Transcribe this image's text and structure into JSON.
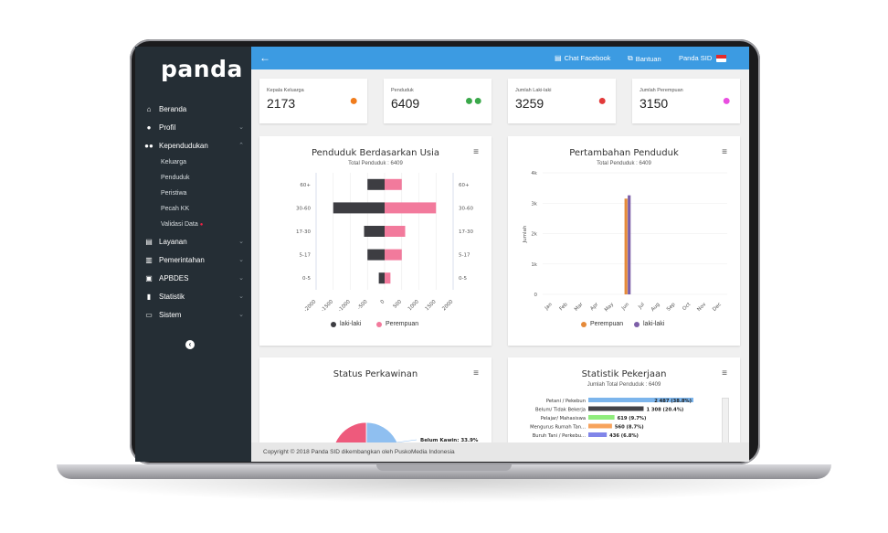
{
  "app": {
    "logo": "panda"
  },
  "sidebar": {
    "items": [
      {
        "label": "Beranda",
        "icon": "home-icon"
      },
      {
        "label": "Profil",
        "icon": "user-icon"
      },
      {
        "label": "Kependudukan",
        "icon": "users-icon"
      },
      {
        "label": "Layanan",
        "icon": "file-icon"
      },
      {
        "label": "Pemerintahan",
        "icon": "building-icon"
      },
      {
        "label": "APBDES",
        "icon": "money-icon"
      },
      {
        "label": "Statistik",
        "icon": "bar-chart-icon"
      },
      {
        "label": "Sistem",
        "icon": "monitor-icon"
      }
    ],
    "sub_items": [
      "Keluarga",
      "Penduduk",
      "Peristiwa",
      "Pecah KK",
      "Validasi Data"
    ]
  },
  "topbar": {
    "chat": "Chat Facebook",
    "help": "Bantuan",
    "site": "Panda SID"
  },
  "stats": [
    {
      "label": "Kepala Keluarga",
      "value": "2173",
      "color": "#f07c1c",
      "icon": "user-icon"
    },
    {
      "label": "Penduduk",
      "value": "6409",
      "color": "#3aa84a",
      "icon": "users-icon"
    },
    {
      "label": "Jumlah Laki-laki",
      "value": "3259",
      "color": "#e23a3a",
      "icon": "user-icon"
    },
    {
      "label": "Jumlah Perempuan",
      "value": "3150",
      "color": "#e94ee0",
      "icon": "user-icon"
    }
  ],
  "chart_data": [
    {
      "type": "bar",
      "title": "Penduduk Berdasarkan Usia",
      "subtitle": "Total Penduduk : 6409",
      "orientation": "horizontal",
      "categories": [
        "60+",
        "30-60",
        "17-30",
        "5-17",
        "0-5"
      ],
      "series": [
        {
          "name": "laki-laki",
          "color": "#3d3d42",
          "values": [
            -500,
            -1500,
            -600,
            -500,
            -170
          ]
        },
        {
          "name": "Perempuan",
          "color": "#f27a9c",
          "values": [
            500,
            1500,
            600,
            500,
            170
          ]
        }
      ],
      "x_ticks": [
        "-2000",
        "-1500",
        "-1000",
        "-500",
        "0",
        "500",
        "1000",
        "1500",
        "2000"
      ],
      "xlim": [
        -2000,
        2000
      ]
    },
    {
      "type": "bar",
      "title": "Pertambahan Penduduk",
      "subtitle": "Total Penduduk : 6409",
      "ylabel": "Jumlah",
      "categories": [
        "Jan",
        "Feb",
        "Mar",
        "Apr",
        "May",
        "Jun",
        "Jul",
        "Aug",
        "Sep",
        "Oct",
        "Nov",
        "Dec"
      ],
      "series": [
        {
          "name": "Perempuan",
          "color": "#e58a3a",
          "values": [
            0,
            0,
            0,
            0,
            0,
            3150,
            0,
            0,
            0,
            0,
            0,
            0
          ]
        },
        {
          "name": "laki-laki",
          "color": "#7d5fa8",
          "values": [
            0,
            0,
            0,
            0,
            0,
            3259,
            0,
            0,
            0,
            0,
            0,
            0
          ]
        }
      ],
      "y_ticks": [
        "0",
        "1k",
        "2k",
        "3k",
        "4k"
      ],
      "ylim": [
        0,
        4000
      ]
    },
    {
      "type": "pie",
      "title": "Status Perkawinan",
      "slices": [
        {
          "label": "Belum Kawin: 33.9%",
          "value": 33.9,
          "color": "#8fbff0"
        },
        {
          "label": "",
          "value": 66.1,
          "color": "#ee5a7c"
        }
      ]
    },
    {
      "type": "bar",
      "title": "Statistik Pekerjaan",
      "subtitle": "Jumlah Total Penduduk : 6409",
      "orientation": "horizontal",
      "categories": [
        "Petani / Pekebun",
        "Belum/ Tidak Bekerja",
        "Pelajar/ Mahasiswa",
        "Mengurus Rumah Tan...",
        "Buruh Tani / Perkebu..."
      ],
      "values": [
        2487,
        1308,
        619,
        560,
        436
      ],
      "labels": [
        "2 487 (38.8%)",
        "1 308 (20.4%)",
        "619 (9.7%)",
        "560 (8.7%)",
        "436 (6.8%)"
      ],
      "colors": [
        "#7cb5ec",
        "#434348",
        "#90ed7d",
        "#f7a35c",
        "#8085e9"
      ],
      "xlim": [
        0,
        2487
      ]
    }
  ],
  "footer": {
    "text": "Copyright © 2018 Panda SID dikembangkan oleh PuskoMedia Indonesia"
  }
}
